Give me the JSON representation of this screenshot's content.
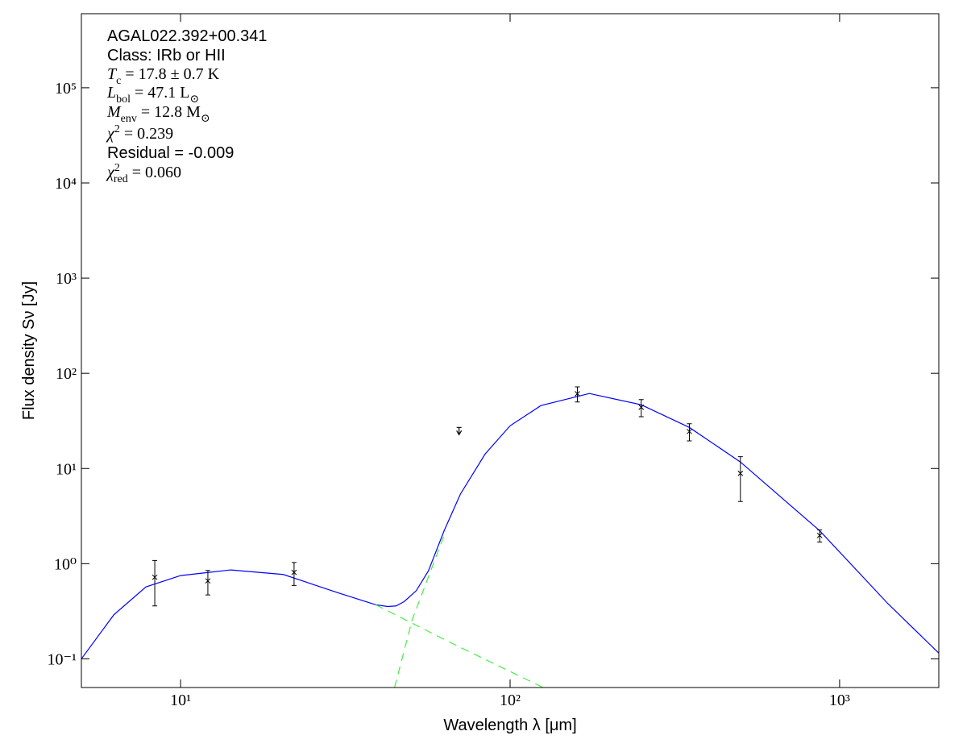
{
  "chart_data": {
    "type": "sed",
    "x_label": "Wavelength λ [μm]",
    "y_label": "Flux density Sν [Jy]",
    "x_log": true,
    "y_log": true,
    "xlim": [
      5,
      2000
    ],
    "ylim": [
      0.05,
      600000
    ],
    "xticks": [
      {
        "value": 10,
        "label": "10¹"
      },
      {
        "value": 100,
        "label": "10²"
      },
      {
        "value": 1000,
        "label": "10³"
      }
    ],
    "yticks": [
      {
        "value": 0.1,
        "label": "10⁻¹"
      },
      {
        "value": 1,
        "label": "10⁰"
      },
      {
        "value": 10,
        "label": "10¹"
      },
      {
        "value": 100,
        "label": "10²"
      },
      {
        "value": 1000,
        "label": "10³"
      },
      {
        "value": 10000,
        "label": "10⁴"
      },
      {
        "value": 100000,
        "label": "10⁵"
      }
    ],
    "annotations": [
      {
        "font": "sans",
        "parts": [
          {
            "t": "AGAL022.392+00.341"
          }
        ]
      },
      {
        "font": "sans",
        "parts": [
          {
            "t": "Class: IRb or HII"
          }
        ]
      },
      {
        "font": "serif",
        "parts": [
          {
            "t": "T",
            "style": "italic"
          },
          {
            "t": "c",
            "style": "sub"
          },
          {
            "t": " = 17.8 ± 0.7 K"
          }
        ]
      },
      {
        "font": "serif",
        "parts": [
          {
            "t": "L",
            "style": "italic"
          },
          {
            "t": "bol",
            "style": "sub"
          },
          {
            "t": " = 47.1 L"
          },
          {
            "t": "⊙",
            "style": "sub"
          }
        ]
      },
      {
        "font": "serif",
        "parts": [
          {
            "t": "M",
            "style": "italic"
          },
          {
            "t": "env",
            "style": "sub"
          },
          {
            "t": " = 12.8 M"
          },
          {
            "t": "⊙",
            "style": "sub"
          }
        ]
      },
      {
        "font": "serif",
        "parts": [
          {
            "t": "χ",
            "style": "italic"
          },
          {
            "t": "2",
            "style": "sup"
          },
          {
            "t": " = 0.239"
          }
        ]
      },
      {
        "font": "sans",
        "parts": [
          {
            "t": "Residual = -0.009"
          }
        ]
      },
      {
        "font": "serif",
        "parts": [
          {
            "t": "χ",
            "style": "italic"
          },
          {
            "t": "2",
            "style": "sup"
          },
          {
            "t": "red",
            "style": "sub"
          },
          {
            "t": " = 0.060"
          }
        ]
      }
    ],
    "points": {
      "color": "#000000",
      "x": [
        8.35,
        12.1,
        22.1,
        70,
        160,
        250,
        350,
        500,
        870
      ],
      "values": [
        0.72,
        0.66,
        0.81,
        27,
        61,
        44,
        24.5,
        8.9,
        1.98
      ],
      "yerr": [
        0.36,
        0.19,
        0.22,
        null,
        11,
        9,
        5,
        4.4,
        0.29
      ],
      "upper_limits": [
        false,
        false,
        false,
        true,
        false,
        false,
        false,
        false,
        false
      ]
    },
    "series": [
      {
        "color": "#0000ff",
        "dash": false,
        "x": [
          5,
          6.27,
          7.85,
          10,
          14.2,
          20.5,
          30.3,
          39.1,
          42.5,
          45.1,
          47.7,
          51.9,
          56.5,
          63.1,
          70.7,
          84,
          100,
          124,
          174,
          250,
          350,
          500,
          870,
          1402,
          2000
        ],
        "values": [
          0.1,
          0.29,
          0.57,
          0.75,
          0.86,
          0.77,
          0.49,
          0.37,
          0.355,
          0.36,
          0.4,
          0.52,
          0.84,
          2.23,
          5.4,
          14.2,
          28.1,
          45.8,
          61.4,
          46.7,
          27,
          11.7,
          2.22,
          0.38,
          0.115
        ]
      },
      {
        "color": "#44ee44",
        "dash": true,
        "x": [
          39.1,
          66.8,
          126
        ],
        "values": [
          0.37,
          0.145,
          0.05
        ]
      },
      {
        "color": "#44ee44",
        "dash": true,
        "x": [
          44.6,
          50.5,
          63.8
        ],
        "values": [
          0.05,
          0.26,
          2.2
        ]
      }
    ]
  }
}
